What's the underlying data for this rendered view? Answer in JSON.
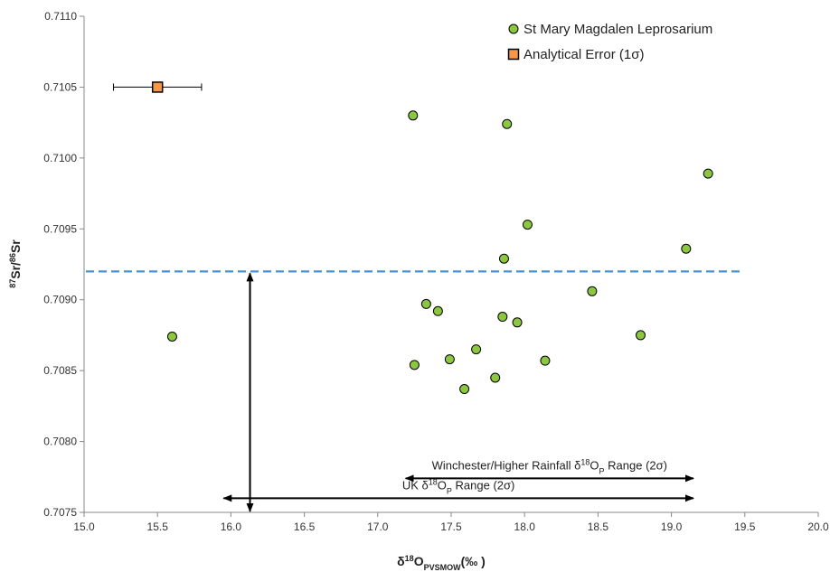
{
  "chart_data": {
    "type": "scatter",
    "xlim": [
      15.0,
      20.0
    ],
    "ylim": [
      0.7075,
      0.711
    ],
    "x_ticks": [
      "15.0",
      "15.5",
      "16.0",
      "16.5",
      "17.0",
      "17.5",
      "18.0",
      "18.5",
      "19.0",
      "19.5",
      "20.0"
    ],
    "y_ticks": [
      "0.7075",
      "0.7080",
      "0.7085",
      "0.7090",
      "0.7095",
      "0.7100",
      "0.7105",
      "0.7110"
    ],
    "xlabel": {
      "base": "δ",
      "sup": "18",
      "mid": "O",
      "sub": "PVSMOW",
      "tail": "(‰ )"
    },
    "ylabel": {
      "sup1": "87",
      "mid1": "Sr/",
      "sup2": "86",
      "mid2": "Sr"
    },
    "grid": false,
    "legend_position": "top-right",
    "series": [
      {
        "name": "St Mary Magdalen Leprosarium",
        "marker": "circle",
        "color": "#8dc63f",
        "points": [
          {
            "x": 15.6,
            "y": 0.70874
          },
          {
            "x": 17.24,
            "y": 0.7103
          },
          {
            "x": 17.25,
            "y": 0.70854
          },
          {
            "x": 17.33,
            "y": 0.70897
          },
          {
            "x": 17.41,
            "y": 0.70892
          },
          {
            "x": 17.49,
            "y": 0.70858
          },
          {
            "x": 17.59,
            "y": 0.70837
          },
          {
            "x": 17.67,
            "y": 0.70865
          },
          {
            "x": 17.8,
            "y": 0.70845
          },
          {
            "x": 17.85,
            "y": 0.70888
          },
          {
            "x": 17.86,
            "y": 0.70929
          },
          {
            "x": 17.88,
            "y": 0.71024
          },
          {
            "x": 17.95,
            "y": 0.70884
          },
          {
            "x": 18.02,
            "y": 0.70953
          },
          {
            "x": 18.14,
            "y": 0.70857
          },
          {
            "x": 18.46,
            "y": 0.70906
          },
          {
            "x": 18.79,
            "y": 0.70875
          },
          {
            "x": 19.1,
            "y": 0.70936
          },
          {
            "x": 19.25,
            "y": 0.70989
          }
        ]
      },
      {
        "name": "Analytical Error (1σ)",
        "marker": "square",
        "color": "#f79646",
        "points": [
          {
            "x": 15.5,
            "y": 0.7105,
            "xerr": 0.3
          }
        ]
      }
    ],
    "reference_line": {
      "y": 0.7092,
      "x_range": [
        15.0,
        19.47
      ],
      "style": "dashed",
      "color": "#4a90d9"
    },
    "vertical_arrow": {
      "x": 16.13,
      "y_range": [
        0.7075,
        0.7092
      ]
    },
    "annotations": [
      {
        "x_range": [
          17.19,
          19.15
        ],
        "y": 0.70774,
        "parts": {
          "pre": "Winchester/Higher Rainfall δ",
          "sup": "18",
          "mid": "O",
          "sub": "P",
          "post": " Range (2σ)"
        }
      },
      {
        "x_range": [
          15.95,
          19.15
        ],
        "y": 0.7076,
        "parts": {
          "pre": "UK δ",
          "sup": "18",
          "mid": "O",
          "sub": "P",
          "post": " Range (2σ)"
        }
      }
    ]
  }
}
